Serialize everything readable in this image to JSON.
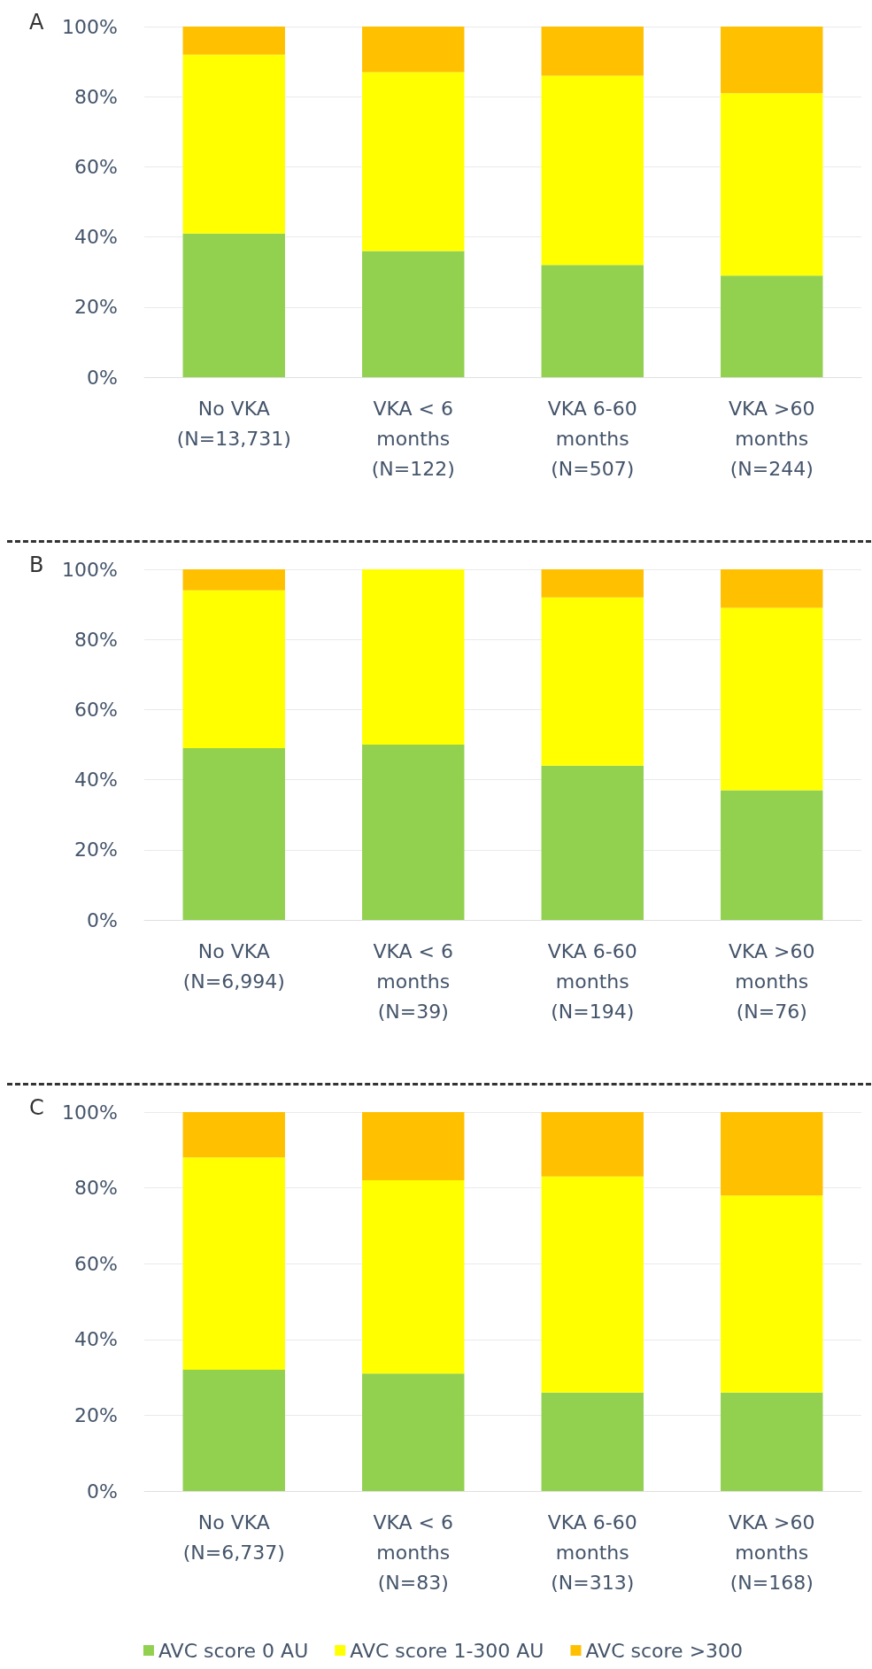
{
  "chart_data": [
    {
      "type": "bar",
      "title": "A",
      "categories": [
        "No VKA\n(N=13,731)",
        "VKA < 6\nmonths\n(N=122)",
        "VKA 6-60\nmonths\n(N=507)",
        "VKA >60\nmonths\n(N=244)"
      ],
      "stacked": true,
      "series": [
        {
          "color": "#92d050",
          "values": [
            41,
            36,
            32,
            29
          ]
        },
        {
          "color": "#ffff00",
          "values": [
            51,
            51,
            54,
            52
          ]
        },
        {
          "color": "#ffc000",
          "values": [
            8,
            13,
            14,
            19
          ]
        }
      ],
      "ylim": [
        0,
        100
      ],
      "yticks": [
        {
          "value": 0,
          "label": "0%"
        },
        {
          "value": 20,
          "label": "20%"
        },
        {
          "value": 40,
          "label": "40%"
        },
        {
          "value": 60,
          "label": "60%"
        },
        {
          "value": 80,
          "label": "80%"
        },
        {
          "value": 100,
          "label": "100%"
        }
      ],
      "grid": "y",
      "legend": false
    },
    {
      "type": "bar",
      "title": "B",
      "categories": [
        "No VKA\n(N=6,994)",
        "VKA < 6\nmonths\n(N=39)",
        "VKA 6-60\nmonths\n(N=194)",
        "VKA >60\nmonths\n(N=76)"
      ],
      "stacked": true,
      "series": [
        {
          "color": "#92d050",
          "values": [
            49,
            50,
            44,
            37
          ]
        },
        {
          "color": "#ffff00",
          "values": [
            45,
            50,
            48,
            52
          ]
        },
        {
          "color": "#ffc000",
          "values": [
            6,
            0,
            8,
            11
          ]
        }
      ],
      "ylim": [
        0,
        100
      ],
      "yticks": [
        {
          "value": 0,
          "label": "0%"
        },
        {
          "value": 20,
          "label": "20%"
        },
        {
          "value": 40,
          "label": "40%"
        },
        {
          "value": 60,
          "label": "60%"
        },
        {
          "value": 80,
          "label": "80%"
        },
        {
          "value": 100,
          "label": "100%"
        }
      ],
      "grid": "y",
      "legend": false
    },
    {
      "type": "bar",
      "title": "C",
      "categories": [
        "No VKA\n(N=6,737)",
        "VKA < 6\nmonths\n(N=83)",
        "VKA 6-60\nmonths\n(N=313)",
        "VKA >60\nmonths\n(N=168)"
      ],
      "stacked": true,
      "series": [
        {
          "name": "AVC score 0 AU",
          "color": "#92d050",
          "values": [
            32,
            31,
            26,
            26
          ]
        },
        {
          "name": "AVC score 1-300 AU",
          "color": "#ffff00",
          "values": [
            56,
            51,
            57,
            52
          ]
        },
        {
          "name": "AVC score >300",
          "color": "#ffc000",
          "values": [
            12,
            18,
            17,
            22
          ]
        }
      ],
      "ylim": [
        0,
        100
      ],
      "yticks": [
        {
          "value": 0,
          "label": "0%"
        },
        {
          "value": 20,
          "label": "20%"
        },
        {
          "value": 40,
          "label": "40%"
        },
        {
          "value": 60,
          "label": "60%"
        },
        {
          "value": 80,
          "label": "80%"
        },
        {
          "value": 100,
          "label": "100%"
        }
      ],
      "grid": "y",
      "legend": "bottom"
    }
  ]
}
